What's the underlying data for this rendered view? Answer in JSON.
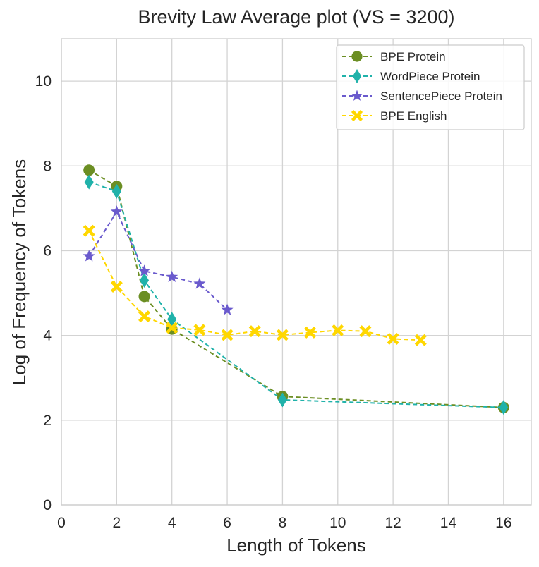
{
  "chart_data": {
    "type": "line",
    "title": "Brevity Law Average plot (VS = 3200)",
    "xlabel": "Length of Tokens",
    "ylabel": "Log of Frequency of Tokens",
    "xlim": [
      0,
      17
    ],
    "ylim": [
      0,
      11
    ],
    "xticks": [
      0,
      2,
      4,
      6,
      8,
      10,
      12,
      14,
      16
    ],
    "yticks": [
      0,
      2,
      4,
      6,
      8,
      10
    ],
    "grid": true,
    "legend_position": "upper right",
    "series": [
      {
        "name": "BPE Protein",
        "color": "#6b8e23",
        "marker": "circle",
        "x": [
          1,
          2,
          3,
          4,
          8,
          16
        ],
        "y": [
          7.9,
          7.52,
          4.92,
          4.15,
          2.56,
          2.3
        ]
      },
      {
        "name": "WordPiece Protein",
        "color": "#20b2aa",
        "marker": "thin-diamond",
        "x": [
          1,
          2,
          3,
          4,
          8,
          16
        ],
        "y": [
          7.62,
          7.4,
          5.3,
          4.38,
          2.48,
          2.3
        ]
      },
      {
        "name": "SentencePiece Protein",
        "color": "#6a5acd",
        "marker": "star",
        "x": [
          1,
          2,
          3,
          4,
          5,
          6
        ],
        "y": [
          5.87,
          6.92,
          5.52,
          5.38,
          5.22,
          4.6
        ]
      },
      {
        "name": "BPE English",
        "color": "#ffd700",
        "marker": "x-filled",
        "x": [
          1,
          2,
          3,
          4,
          5,
          6,
          7,
          8,
          9,
          10,
          11,
          12,
          13
        ],
        "y": [
          6.47,
          5.15,
          4.45,
          4.18,
          4.13,
          4.01,
          4.1,
          4.01,
          4.07,
          4.12,
          4.1,
          3.92,
          3.89
        ]
      }
    ]
  }
}
